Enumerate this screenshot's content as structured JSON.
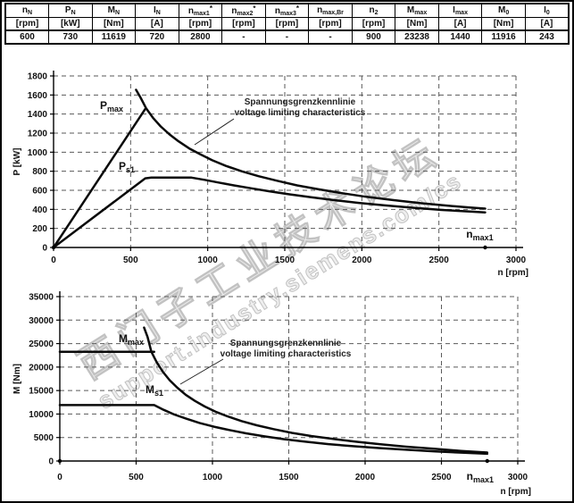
{
  "table": {
    "columns": [
      {
        "sym": {
          "base": "n",
          "sub": "N",
          "sup": ""
        },
        "unit": "[rpm]",
        "value": "600"
      },
      {
        "sym": {
          "base": "P",
          "sub": "N",
          "sup": ""
        },
        "unit": "[kW]",
        "value": "730"
      },
      {
        "sym": {
          "base": "M",
          "sub": "N",
          "sup": ""
        },
        "unit": "[Nm]",
        "value": "11619"
      },
      {
        "sym": {
          "base": "I",
          "sub": "N",
          "sup": ""
        },
        "unit": "[A]",
        "value": "720"
      },
      {
        "sym": {
          "base": "n",
          "sub": "max1",
          "sup": "*"
        },
        "unit": "[rpm]",
        "value": "2800"
      },
      {
        "sym": {
          "base": "n",
          "sub": "max2",
          "sup": "*"
        },
        "unit": "[rpm]",
        "value": "-"
      },
      {
        "sym": {
          "base": "n",
          "sub": "max3",
          "sup": "*"
        },
        "unit": "[rpm]",
        "value": "-"
      },
      {
        "sym": {
          "base": "n",
          "sub": "max,Br",
          "sup": ""
        },
        "unit": "[rpm]",
        "value": "-"
      },
      {
        "sym": {
          "base": "n",
          "sub": "2",
          "sup": ""
        },
        "unit": "[rpm]",
        "value": "900"
      },
      {
        "sym": {
          "base": "M",
          "sub": "max",
          "sup": ""
        },
        "unit": "[Nm]",
        "value": "23238"
      },
      {
        "sym": {
          "base": "I",
          "sub": "max",
          "sup": ""
        },
        "unit": "[A]",
        "value": "1440"
      },
      {
        "sym": {
          "base": "M",
          "sub": "0",
          "sup": ""
        },
        "unit": "[Nm]",
        "value": "11916"
      },
      {
        "sym": {
          "base": "I",
          "sub": "0",
          "sup": ""
        },
        "unit": "[A]",
        "value": "243"
      }
    ]
  },
  "watermark": {
    "line1": "西门子工业技术论坛",
    "line2": "support.industry.siemens.com/cs",
    "color": "#c2c2c2"
  },
  "chart_data": [
    {
      "type": "line",
      "title": "",
      "xlabel": "n [rpm]",
      "ylabel": "P [kW]",
      "xlim": [
        0,
        3000
      ],
      "ylim": [
        0,
        1800
      ],
      "xticks": [
        0,
        500,
        1000,
        1500,
        2000,
        2500,
        3000
      ],
      "yticks": [
        0,
        200,
        400,
        600,
        800,
        1000,
        1200,
        1400,
        1600,
        1800
      ],
      "grid": true,
      "legend": "none",
      "line_color": "#0a0a0a",
      "annotation": {
        "line1": "Spannungsgrenzkennlinie",
        "line2": "voltage limiting characteristics"
      },
      "curve_labels": [
        {
          "base": "P",
          "sub": "max"
        },
        {
          "base": "P",
          "sub": "s1"
        }
      ],
      "axis_marker": {
        "base": "n",
        "sub": "max1",
        "x": 2800
      },
      "series": [
        {
          "name": "P_max-line",
          "points": [
            [
              0,
              0
            ],
            [
              598,
              1462
            ]
          ]
        },
        {
          "name": "voltage-limiting-characteristic",
          "points": [
            [
              535,
              1655
            ],
            [
              565,
              1570
            ],
            [
              600,
              1462
            ],
            [
              645,
              1360
            ],
            [
              695,
              1270
            ],
            [
              750,
              1190
            ],
            [
              810,
              1115
            ],
            [
              880,
              1040
            ],
            [
              950,
              980
            ],
            [
              1030,
              915
            ],
            [
              1120,
              855
            ],
            [
              1220,
              800
            ],
            [
              1330,
              748
            ],
            [
              1450,
              700
            ],
            [
              1580,
              652
            ],
            [
              1720,
              610
            ],
            [
              1870,
              570
            ],
            [
              2030,
              532
            ],
            [
              2200,
              498
            ],
            [
              2380,
              465
            ],
            [
              2560,
              438
            ],
            [
              2700,
              420
            ],
            [
              2800,
              408
            ]
          ]
        },
        {
          "name": "P_s1",
          "points": [
            [
              0,
              0
            ],
            [
              595,
              726
            ],
            [
              635,
              733
            ],
            [
              895,
              733
            ],
            [
              980,
              710
            ],
            [
              1070,
              682
            ],
            [
              1170,
              652
            ],
            [
              1280,
              622
            ],
            [
              1400,
              590
            ],
            [
              1530,
              558
            ],
            [
              1670,
              527
            ],
            [
              1820,
              497
            ],
            [
              1980,
              468
            ],
            [
              2150,
              442
            ],
            [
              2330,
              417
            ],
            [
              2520,
              394
            ],
            [
              2700,
              377
            ],
            [
              2800,
              368
            ]
          ]
        }
      ]
    },
    {
      "type": "line",
      "title": "",
      "xlabel": "n [rpm]",
      "ylabel": "M [Nm]",
      "xlim": [
        0,
        3000
      ],
      "ylim": [
        0,
        35000
      ],
      "xticks": [
        0,
        500,
        1000,
        1500,
        2000,
        2500,
        3000
      ],
      "yticks": [
        0,
        5000,
        10000,
        15000,
        20000,
        25000,
        30000,
        35000
      ],
      "grid": true,
      "legend": "none",
      "line_color": "#0a0a0a",
      "annotation": {
        "line1": "Spannungsgrenzkennlinie",
        "line2": "voltage limiting characteristics"
      },
      "curve_labels": [
        {
          "base": "M",
          "sub": "max"
        },
        {
          "base": "M",
          "sub": "s1"
        }
      ],
      "axis_marker": {
        "base": "n",
        "sub": "max1",
        "x": 2800
      },
      "series": [
        {
          "name": "M_max-flat",
          "points": [
            [
              0,
              23238
            ],
            [
              618,
              23238
            ]
          ]
        },
        {
          "name": "voltage-limiting-characteristic",
          "points": [
            [
              552,
              28400
            ],
            [
              575,
              26400
            ],
            [
              600,
              23238
            ],
            [
              635,
              21000
            ],
            [
              675,
              19000
            ],
            [
              720,
              17200
            ],
            [
              770,
              15600
            ],
            [
              825,
              14100
            ],
            [
              885,
              12800
            ],
            [
              950,
              11600
            ],
            [
              1020,
              10500
            ],
            [
              1100,
              9500
            ],
            [
              1190,
              8500
            ],
            [
              1290,
              7600
            ],
            [
              1400,
              6800
            ],
            [
              1520,
              6000
            ],
            [
              1650,
              5300
            ],
            [
              1790,
              4700
            ],
            [
              1940,
              4100
            ],
            [
              2100,
              3550
            ],
            [
              2270,
              3050
            ],
            [
              2450,
              2600
            ],
            [
              2630,
              2150
            ],
            [
              2800,
              1800
            ]
          ]
        },
        {
          "name": "M_s1",
          "points": [
            [
              0,
              11916
            ],
            [
              618,
              11916
            ],
            [
              680,
              10900
            ],
            [
              750,
              9900
            ],
            [
              830,
              9000
            ],
            [
              915,
              8100
            ],
            [
              1010,
              7300
            ],
            [
              1110,
              6600
            ],
            [
              1220,
              5900
            ],
            [
              1340,
              5250
            ],
            [
              1470,
              4650
            ],
            [
              1610,
              4100
            ],
            [
              1760,
              3600
            ],
            [
              1920,
              3150
            ],
            [
              2090,
              2750
            ],
            [
              2270,
              2400
            ],
            [
              2460,
              2050
            ],
            [
              2650,
              1750
            ],
            [
              2800,
              1550
            ]
          ]
        }
      ]
    }
  ]
}
